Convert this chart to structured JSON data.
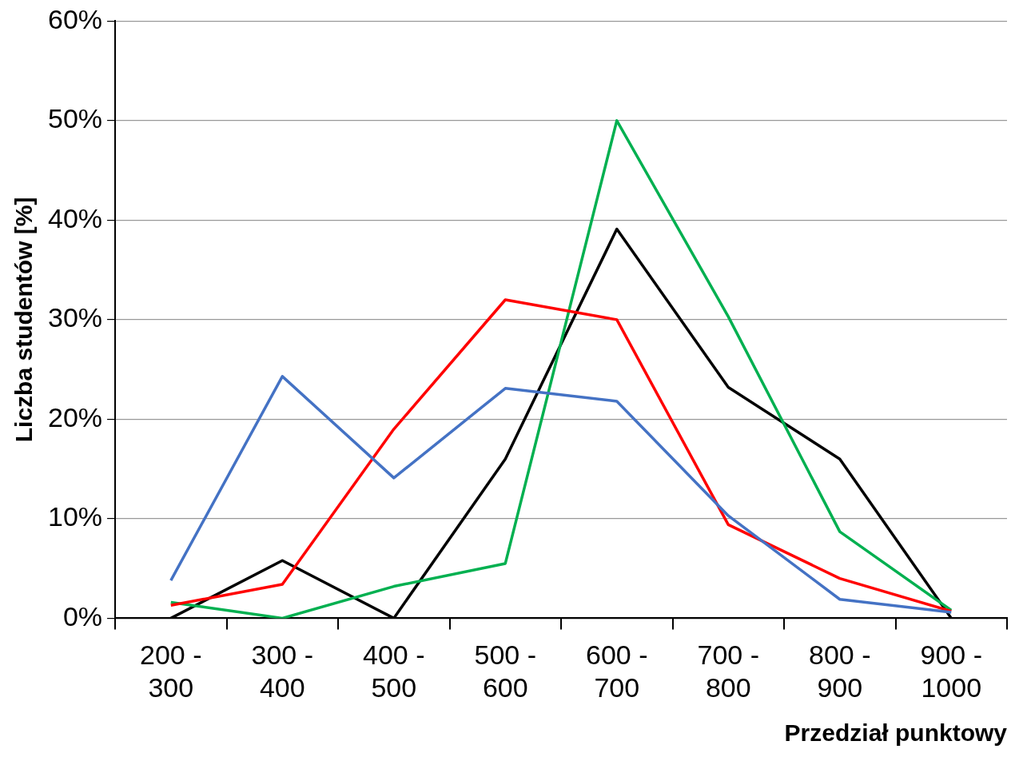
{
  "chart_data": {
    "type": "line",
    "xlabel": "Przedział punktowy",
    "ylabel": "Liczba studentów [%]",
    "categories": [
      "200 - 300",
      "300 - 400",
      "400 - 500",
      "500 - 600",
      "600 - 700",
      "700 - 800",
      "800 - 900",
      "900 - 1000"
    ],
    "series": [
      {
        "color": "#4472c4",
        "values": [
          3.8,
          24.3,
          14.1,
          23.1,
          21.8,
          10.3,
          1.9,
          0.6
        ]
      },
      {
        "color": "#ff0000",
        "values": [
          1.3,
          3.4,
          19.0,
          32.0,
          30.0,
          9.4,
          4.0,
          0.7
        ]
      },
      {
        "color": "#00b050",
        "values": [
          1.6,
          0,
          3.2,
          5.5,
          50,
          30.3,
          8.7,
          0.8
        ]
      },
      {
        "color": "#000000",
        "values": [
          0,
          5.8,
          0,
          16.0,
          39.1,
          23.2,
          16.0,
          0
        ]
      }
    ],
    "ylim": [
      0,
      60
    ],
    "yticks": [
      {
        "value": 0,
        "label": "0%"
      },
      {
        "value": 10,
        "label": "10%"
      },
      {
        "value": 20,
        "label": "20%"
      },
      {
        "value": 30,
        "label": "30%"
      },
      {
        "value": 40,
        "label": "40%"
      },
      {
        "value": 50,
        "label": "50%"
      },
      {
        "value": 60,
        "label": "60%"
      }
    ],
    "grid": "y",
    "legend": false,
    "marker": "none",
    "line_style": "solid"
  }
}
